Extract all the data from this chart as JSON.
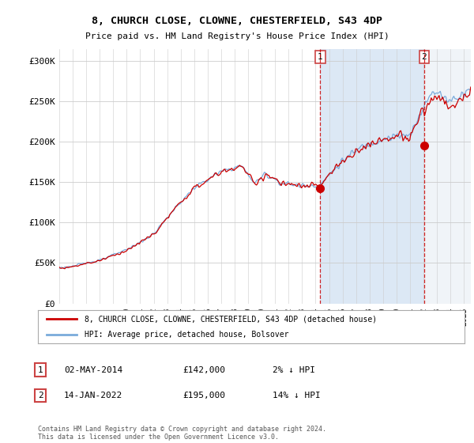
{
  "title": "8, CHURCH CLOSE, CLOWNE, CHESTERFIELD, S43 4DP",
  "subtitle": "Price paid vs. HM Land Registry's House Price Index (HPI)",
  "yticks": [
    0,
    50000,
    100000,
    150000,
    200000,
    250000,
    300000
  ],
  "ytick_labels": [
    "£0",
    "£50K",
    "£100K",
    "£150K",
    "£200K",
    "£250K",
    "£300K"
  ],
  "hpi_color": "#7aabdb",
  "price_color": "#cc0000",
  "point1_x": 2014.35,
  "point1_y": 142000,
  "point2_x": 2022.04,
  "point2_y": 195000,
  "vline1_x": 2014.35,
  "vline2_x": 2022.04,
  "shade_between_color": "#dce8f5",
  "shade_after_color": "#ececec",
  "legend_house": "8, CHURCH CLOSE, CLOWNE, CHESTERFIELD, S43 4DP (detached house)",
  "legend_hpi": "HPI: Average price, detached house, Bolsover",
  "ann1_label": "1",
  "ann2_label": "2",
  "note1_date": "02-MAY-2014",
  "note1_price": "£142,000",
  "note1_hpi": "2% ↓ HPI",
  "note2_date": "14-JAN-2022",
  "note2_price": "£195,000",
  "note2_hpi": "14% ↓ HPI",
  "footer": "Contains HM Land Registry data © Crown copyright and database right 2024.\nThis data is licensed under the Open Government Licence v3.0.",
  "xlim_left": 1995.0,
  "xlim_right": 2025.5,
  "ylim_top": 315000
}
